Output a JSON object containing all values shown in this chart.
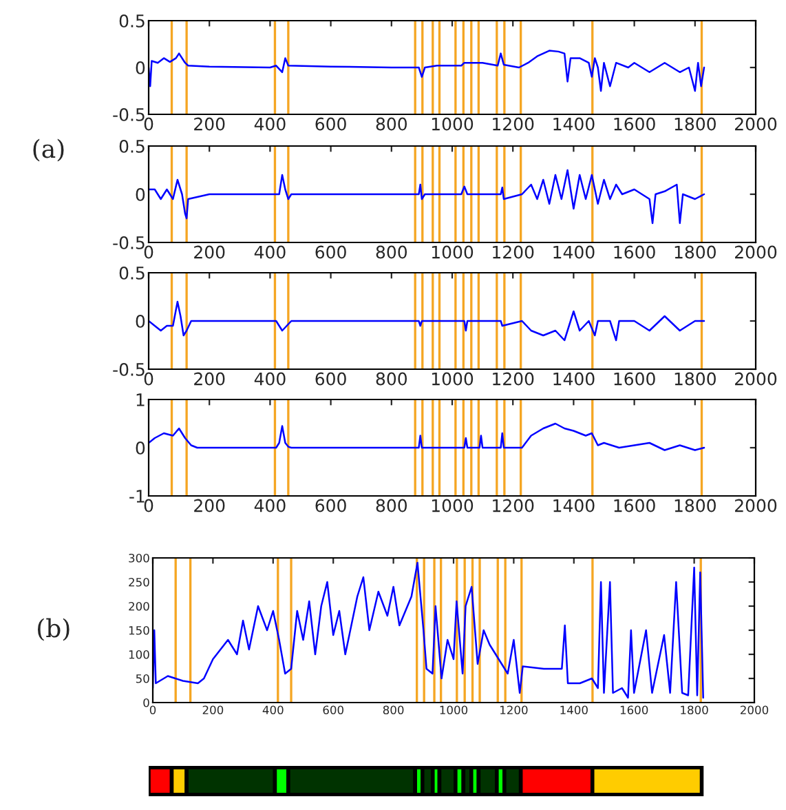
{
  "chart_data": [
    {
      "type": "line",
      "xlim": [
        0,
        2000
      ],
      "xticks": [
        0,
        200,
        400,
        600,
        800,
        1000,
        1200,
        1400,
        1600,
        1800,
        2000
      ],
      "ylim": [
        -0.5,
        0.5
      ],
      "yticks": [
        -0.5,
        0,
        0.5
      ],
      "grid": false,
      "legend": false,
      "series": [
        {
          "color": "#0000ff",
          "x": [
            0,
            5,
            10,
            30,
            50,
            70,
            90,
            100,
            120,
            130,
            200,
            400,
            420,
            440,
            450,
            460,
            600,
            800,
            890,
            900,
            910,
            950,
            1030,
            1040,
            1100,
            1150,
            1160,
            1170,
            1220,
            1250,
            1280,
            1300,
            1320,
            1350,
            1370,
            1380,
            1390,
            1420,
            1450,
            1460,
            1470,
            1480,
            1490,
            1500,
            1520,
            1540,
            1580,
            1600,
            1650,
            1700,
            1750,
            1780,
            1800,
            1810,
            1820,
            1830
          ],
          "values": [
            0,
            -0.2,
            0.07,
            0.05,
            0.1,
            0.06,
            0.1,
            0.15,
            0.05,
            0.02,
            0.01,
            0,
            0.02,
            -0.05,
            0.1,
            0.02,
            0.01,
            0,
            0,
            -0.1,
            0,
            0.02,
            0.02,
            0.05,
            0.05,
            0.02,
            0.15,
            0.03,
            0,
            0.05,
            0.12,
            0.15,
            0.18,
            0.17,
            0.15,
            -0.15,
            0.1,
            0.1,
            0.05,
            -0.1,
            0.1,
            0,
            -0.25,
            0.05,
            -0.2,
            0.05,
            0,
            0.05,
            -0.05,
            0.05,
            -0.05,
            0,
            -0.25,
            0.05,
            -0.2,
            0
          ]
        }
      ],
      "ref_lines": [
        {
          "axis": "x",
          "value": 76,
          "color": "#f5a623"
        },
        {
          "axis": "x",
          "value": 125,
          "color": "#f5a623"
        },
        {
          "axis": "x",
          "value": 416,
          "color": "#f5a623"
        },
        {
          "axis": "x",
          "value": 460,
          "color": "#f5a623"
        },
        {
          "axis": "x",
          "value": 878,
          "color": "#f5a623"
        },
        {
          "axis": "x",
          "value": 902,
          "color": "#f5a623"
        },
        {
          "axis": "x",
          "value": 936,
          "color": "#f5a623"
        },
        {
          "axis": "x",
          "value": 958,
          "color": "#f5a623"
        },
        {
          "axis": "x",
          "value": 1011,
          "color": "#f5a623"
        },
        {
          "axis": "x",
          "value": 1037,
          "color": "#f5a623"
        },
        {
          "axis": "x",
          "value": 1063,
          "color": "#f5a623"
        },
        {
          "axis": "x",
          "value": 1087,
          "color": "#f5a623"
        },
        {
          "axis": "x",
          "value": 1147,
          "color": "#f5a623"
        },
        {
          "axis": "x",
          "value": 1172,
          "color": "#f5a623"
        },
        {
          "axis": "x",
          "value": 1226,
          "color": "#f5a623"
        },
        {
          "axis": "x",
          "value": 1462,
          "color": "#f5a623"
        },
        {
          "axis": "x",
          "value": 1822,
          "color": "#f5a623"
        }
      ]
    },
    {
      "type": "line",
      "xlim": [
        0,
        2000
      ],
      "xticks": [
        0,
        200,
        400,
        600,
        800,
        1000,
        1200,
        1400,
        1600,
        1800,
        2000
      ],
      "ylim": [
        -0.5,
        0.5
      ],
      "yticks": [
        -0.5,
        0,
        0.5
      ],
      "grid": false,
      "legend": false,
      "annotations": [
        "(a)"
      ],
      "series": [
        {
          "color": "#0000ff",
          "x": [
            0,
            20,
            40,
            60,
            80,
            95,
            110,
            120,
            125,
            130,
            200,
            400,
            430,
            440,
            450,
            460,
            470,
            890,
            895,
            900,
            910,
            1030,
            1040,
            1050,
            1160,
            1165,
            1170,
            1230,
            1260,
            1280,
            1300,
            1320,
            1340,
            1360,
            1380,
            1400,
            1420,
            1440,
            1460,
            1480,
            1500,
            1520,
            1540,
            1560,
            1600,
            1650,
            1660,
            1670,
            1700,
            1740,
            1750,
            1760,
            1800,
            1830
          ],
          "values": [
            0.05,
            0.05,
            -0.05,
            0.05,
            -0.05,
            0.15,
            0,
            -0.2,
            -0.25,
            -0.05,
            0,
            0,
            0,
            0.2,
            0.05,
            -0.05,
            0,
            0,
            0.1,
            -0.05,
            0,
            0,
            0.08,
            0,
            0,
            0.07,
            -0.05,
            0,
            0.1,
            -0.05,
            0.15,
            -0.1,
            0.2,
            -0.05,
            0.25,
            -0.15,
            0.2,
            -0.05,
            0.2,
            -0.1,
            0.15,
            -0.05,
            0.1,
            0,
            0.05,
            -0.05,
            -0.3,
            0,
            0.03,
            0.1,
            -0.3,
            0,
            -0.05,
            0
          ]
        }
      ],
      "ref_lines": [
        {
          "axis": "x",
          "value": 76,
          "color": "#f5a623"
        },
        {
          "axis": "x",
          "value": 125,
          "color": "#f5a623"
        },
        {
          "axis": "x",
          "value": 416,
          "color": "#f5a623"
        },
        {
          "axis": "x",
          "value": 460,
          "color": "#f5a623"
        },
        {
          "axis": "x",
          "value": 878,
          "color": "#f5a623"
        },
        {
          "axis": "x",
          "value": 902,
          "color": "#f5a623"
        },
        {
          "axis": "x",
          "value": 936,
          "color": "#f5a623"
        },
        {
          "axis": "x",
          "value": 958,
          "color": "#f5a623"
        },
        {
          "axis": "x",
          "value": 1011,
          "color": "#f5a623"
        },
        {
          "axis": "x",
          "value": 1037,
          "color": "#f5a623"
        },
        {
          "axis": "x",
          "value": 1063,
          "color": "#f5a623"
        },
        {
          "axis": "x",
          "value": 1087,
          "color": "#f5a623"
        },
        {
          "axis": "x",
          "value": 1147,
          "color": "#f5a623"
        },
        {
          "axis": "x",
          "value": 1172,
          "color": "#f5a623"
        },
        {
          "axis": "x",
          "value": 1226,
          "color": "#f5a623"
        },
        {
          "axis": "x",
          "value": 1462,
          "color": "#f5a623"
        },
        {
          "axis": "x",
          "value": 1822,
          "color": "#f5a623"
        }
      ]
    },
    {
      "type": "line",
      "xlim": [
        0,
        2000
      ],
      "xticks": [
        0,
        200,
        400,
        600,
        800,
        1000,
        1200,
        1400,
        1600,
        1800,
        2000
      ],
      "ylim": [
        -0.5,
        0.5
      ],
      "yticks": [
        -0.5,
        0,
        0.5
      ],
      "grid": false,
      "legend": false,
      "series": [
        {
          "color": "#0000ff",
          "x": [
            0,
            20,
            40,
            60,
            80,
            95,
            105,
            115,
            125,
            140,
            420,
            440,
            455,
            470,
            890,
            895,
            900,
            1040,
            1045,
            1050,
            1100,
            1160,
            1165,
            1230,
            1260,
            1300,
            1340,
            1370,
            1400,
            1420,
            1450,
            1470,
            1480,
            1520,
            1540,
            1550,
            1600,
            1650,
            1700,
            1750,
            1800,
            1830
          ],
          "values": [
            0,
            -0.05,
            -0.1,
            -0.05,
            -0.05,
            0.2,
            0.05,
            -0.15,
            -0.1,
            0,
            0,
            -0.1,
            -0.05,
            0,
            0,
            -0.05,
            0,
            0,
            -0.1,
            0,
            0,
            0,
            -0.05,
            0,
            -0.1,
            -0.15,
            -0.1,
            -0.2,
            0.1,
            -0.1,
            0,
            -0.15,
            0,
            0,
            -0.2,
            0,
            0,
            -0.1,
            0.05,
            -0.1,
            0,
            0
          ]
        }
      ],
      "ref_lines": [
        {
          "axis": "x",
          "value": 76,
          "color": "#f5a623"
        },
        {
          "axis": "x",
          "value": 125,
          "color": "#f5a623"
        },
        {
          "axis": "x",
          "value": 416,
          "color": "#f5a623"
        },
        {
          "axis": "x",
          "value": 460,
          "color": "#f5a623"
        },
        {
          "axis": "x",
          "value": 878,
          "color": "#f5a623"
        },
        {
          "axis": "x",
          "value": 902,
          "color": "#f5a623"
        },
        {
          "axis": "x",
          "value": 936,
          "color": "#f5a623"
        },
        {
          "axis": "x",
          "value": 958,
          "color": "#f5a623"
        },
        {
          "axis": "x",
          "value": 1011,
          "color": "#f5a623"
        },
        {
          "axis": "x",
          "value": 1037,
          "color": "#f5a623"
        },
        {
          "axis": "x",
          "value": 1063,
          "color": "#f5a623"
        },
        {
          "axis": "x",
          "value": 1087,
          "color": "#f5a623"
        },
        {
          "axis": "x",
          "value": 1147,
          "color": "#f5a623"
        },
        {
          "axis": "x",
          "value": 1172,
          "color": "#f5a623"
        },
        {
          "axis": "x",
          "value": 1226,
          "color": "#f5a623"
        },
        {
          "axis": "x",
          "value": 1462,
          "color": "#f5a623"
        },
        {
          "axis": "x",
          "value": 1822,
          "color": "#f5a623"
        }
      ]
    },
    {
      "type": "line",
      "xlim": [
        0,
        2000
      ],
      "xticks": [
        0,
        200,
        400,
        600,
        800,
        1000,
        1200,
        1400,
        1600,
        1800,
        2000
      ],
      "ylim": [
        -1,
        1
      ],
      "yticks": [
        -1,
        0,
        1
      ],
      "grid": false,
      "legend": false,
      "series": [
        {
          "color": "#0000ff",
          "x": [
            0,
            20,
            50,
            80,
            100,
            120,
            140,
            160,
            420,
            430,
            440,
            450,
            460,
            470,
            890,
            895,
            900,
            1040,
            1045,
            1050,
            1090,
            1095,
            1100,
            1160,
            1165,
            1170,
            1230,
            1260,
            1300,
            1340,
            1370,
            1400,
            1440,
            1460,
            1480,
            1500,
            1550,
            1600,
            1650,
            1700,
            1750,
            1800,
            1830
          ],
          "values": [
            0.1,
            0.2,
            0.3,
            0.25,
            0.4,
            0.2,
            0.05,
            0,
            0,
            0.1,
            0.45,
            0.1,
            0.02,
            0,
            0,
            0.25,
            0,
            0,
            0.2,
            0,
            0,
            0.25,
            0,
            0,
            0.3,
            0,
            0,
            0.25,
            0.4,
            0.5,
            0.4,
            0.35,
            0.25,
            0.3,
            0.05,
            0.1,
            0,
            0.05,
            0.1,
            -0.05,
            0.05,
            -0.05,
            0
          ]
        }
      ],
      "ref_lines": [
        {
          "axis": "x",
          "value": 76,
          "color": "#f5a623"
        },
        {
          "axis": "x",
          "value": 125,
          "color": "#f5a623"
        },
        {
          "axis": "x",
          "value": 416,
          "color": "#f5a623"
        },
        {
          "axis": "x",
          "value": 460,
          "color": "#f5a623"
        },
        {
          "axis": "x",
          "value": 878,
          "color": "#f5a623"
        },
        {
          "axis": "x",
          "value": 902,
          "color": "#f5a623"
        },
        {
          "axis": "x",
          "value": 936,
          "color": "#f5a623"
        },
        {
          "axis": "x",
          "value": 958,
          "color": "#f5a623"
        },
        {
          "axis": "x",
          "value": 1011,
          "color": "#f5a623"
        },
        {
          "axis": "x",
          "value": 1037,
          "color": "#f5a623"
        },
        {
          "axis": "x",
          "value": 1063,
          "color": "#f5a623"
        },
        {
          "axis": "x",
          "value": 1087,
          "color": "#f5a623"
        },
        {
          "axis": "x",
          "value": 1147,
          "color": "#f5a623"
        },
        {
          "axis": "x",
          "value": 1172,
          "color": "#f5a623"
        },
        {
          "axis": "x",
          "value": 1226,
          "color": "#f5a623"
        },
        {
          "axis": "x",
          "value": 1462,
          "color": "#f5a623"
        },
        {
          "axis": "x",
          "value": 1822,
          "color": "#f5a623"
        }
      ]
    },
    {
      "type": "line",
      "xlim": [
        0,
        2000
      ],
      "xticks": [
        0,
        200,
        400,
        600,
        800,
        1000,
        1200,
        1400,
        1600,
        1800,
        2000
      ],
      "ylim": [
        0,
        300
      ],
      "yticks": [
        0,
        50,
        100,
        150,
        200,
        250,
        300
      ],
      "grid": false,
      "legend": false,
      "annotations": [
        "(b)"
      ],
      "series": [
        {
          "color": "#0000ff",
          "x": [
            0,
            5,
            10,
            50,
            100,
            150,
            170,
            200,
            250,
            280,
            300,
            320,
            350,
            380,
            400,
            420,
            440,
            460,
            480,
            500,
            520,
            540,
            560,
            580,
            600,
            620,
            640,
            680,
            700,
            720,
            750,
            780,
            800,
            820,
            860,
            880,
            900,
            910,
            930,
            940,
            960,
            980,
            1000,
            1010,
            1030,
            1040,
            1060,
            1080,
            1100,
            1120,
            1150,
            1180,
            1200,
            1220,
            1230,
            1300,
            1360,
            1370,
            1380,
            1420,
            1460,
            1480,
            1490,
            1500,
            1520,
            1530,
            1560,
            1580,
            1590,
            1600,
            1640,
            1660,
            1700,
            1720,
            1740,
            1760,
            1780,
            1800,
            1810,
            1820,
            1830
          ],
          "values": [
            30,
            150,
            40,
            55,
            45,
            40,
            50,
            90,
            130,
            100,
            170,
            110,
            200,
            150,
            190,
            130,
            60,
            70,
            190,
            130,
            210,
            100,
            200,
            250,
            140,
            190,
            100,
            220,
            260,
            150,
            230,
            180,
            240,
            160,
            220,
            290,
            150,
            70,
            60,
            200,
            50,
            130,
            90,
            210,
            60,
            200,
            240,
            80,
            150,
            120,
            90,
            60,
            130,
            20,
            75,
            70,
            70,
            160,
            40,
            40,
            50,
            30,
            250,
            20,
            250,
            20,
            30,
            10,
            150,
            20,
            150,
            20,
            140,
            20,
            250,
            20,
            15,
            280,
            15,
            270,
            10
          ]
        }
      ],
      "ref_lines": [
        {
          "axis": "x",
          "value": 76,
          "color": "#f5a623"
        },
        {
          "axis": "x",
          "value": 125,
          "color": "#f5a623"
        },
        {
          "axis": "x",
          "value": 416,
          "color": "#f5a623"
        },
        {
          "axis": "x",
          "value": 460,
          "color": "#f5a623"
        },
        {
          "axis": "x",
          "value": 878,
          "color": "#f5a623"
        },
        {
          "axis": "x",
          "value": 902,
          "color": "#f5a623"
        },
        {
          "axis": "x",
          "value": 936,
          "color": "#f5a623"
        },
        {
          "axis": "x",
          "value": 958,
          "color": "#f5a623"
        },
        {
          "axis": "x",
          "value": 1011,
          "color": "#f5a623"
        },
        {
          "axis": "x",
          "value": 1037,
          "color": "#f5a623"
        },
        {
          "axis": "x",
          "value": 1063,
          "color": "#f5a623"
        },
        {
          "axis": "x",
          "value": 1087,
          "color": "#f5a623"
        },
        {
          "axis": "x",
          "value": 1147,
          "color": "#f5a623"
        },
        {
          "axis": "x",
          "value": 1172,
          "color": "#f5a623"
        },
        {
          "axis": "x",
          "value": 1226,
          "color": "#f5a623"
        },
        {
          "axis": "x",
          "value": 1462,
          "color": "#f5a623"
        },
        {
          "axis": "x",
          "value": 1822,
          "color": "#f5a623"
        }
      ]
    },
    {
      "type": "bar",
      "orientation": "horizontal",
      "stacked": true,
      "categories": [
        null
      ],
      "xlim": [
        0,
        2000
      ],
      "tick_labels": false,
      "grid": false,
      "legend": false,
      "series": [
        {
          "color": "#ff0000",
          "values": [
            76
          ]
        },
        {
          "color": "#ffcc00",
          "values": [
            49
          ]
        },
        {
          "color": "#003300",
          "values": [
            291
          ]
        },
        {
          "color": "#00ff00",
          "values": [
            44
          ]
        },
        {
          "color": "#003300",
          "values": [
            418
          ]
        },
        {
          "color": "#00ff00",
          "values": [
            24
          ]
        },
        {
          "color": "#003300",
          "values": [
            34
          ]
        },
        {
          "color": "#00ff00",
          "values": [
            22
          ]
        },
        {
          "color": "#003300",
          "values": [
            53
          ]
        },
        {
          "color": "#00ff00",
          "values": [
            26
          ]
        },
        {
          "color": "#003300",
          "values": [
            26
          ]
        },
        {
          "color": "#00ff00",
          "values": [
            24
          ]
        },
        {
          "color": "#003300",
          "values": [
            60
          ]
        },
        {
          "color": "#00ff00",
          "values": [
            25
          ]
        },
        {
          "color": "#003300",
          "values": [
            54
          ]
        },
        {
          "color": "#ff0000",
          "values": [
            236
          ]
        },
        {
          "color": "#ffcc00",
          "values": [
            360
          ]
        }
      ]
    }
  ]
}
